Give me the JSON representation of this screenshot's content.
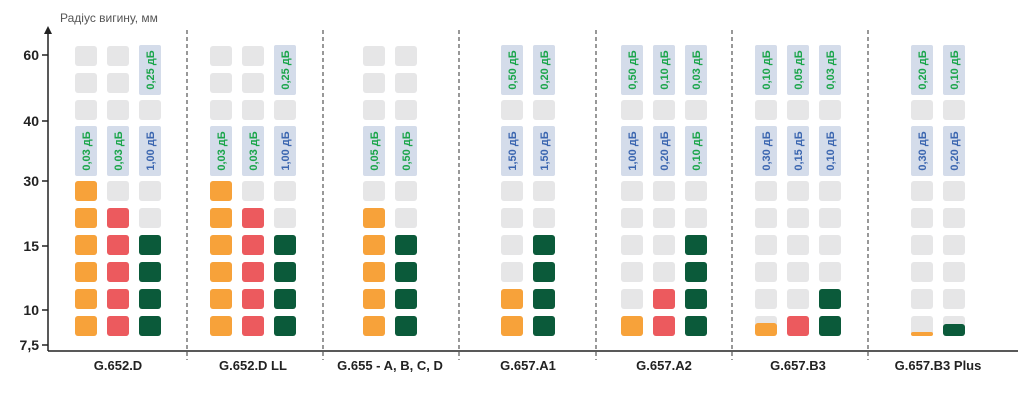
{
  "chart_data": {
    "type": "heatmap",
    "ylabel": "Радіус вигину, мм",
    "y_ticks": [
      "60",
      "40",
      "30",
      "15",
      "10",
      "7,5"
    ],
    "colors": {
      "orange": "#f7a23a",
      "red": "#ec5a5e",
      "green": "#0b5a3a",
      "cell_empty": "#e6e6e7",
      "label_bg": "#d4dcea",
      "loss_green": "#1aa54a",
      "loss_blue": "#3b66b0",
      "axis": "#222222",
      "separator": "#555555"
    },
    "groups": [
      {
        "category": "G.652.D",
        "columns": [
          {
            "color": "orange",
            "filled_levels": 6,
            "loss": {
              "text": "0,03 дБ",
              "color": "green"
            }
          },
          {
            "color": "red",
            "filled_levels": 5,
            "loss": {
              "text": "0,03 дБ",
              "color": "green"
            }
          },
          {
            "color": "green",
            "filled_levels": 4,
            "loss": {
              "text": "1,00 дБ",
              "color": "blue"
            },
            "loss_upper": {
              "text": "0,25 дБ",
              "color": "green"
            }
          }
        ]
      },
      {
        "category": "G.652.D LL",
        "columns": [
          {
            "color": "orange",
            "filled_levels": 6,
            "loss": {
              "text": "0,03 дБ",
              "color": "green"
            }
          },
          {
            "color": "red",
            "filled_levels": 5,
            "loss": {
              "text": "0,03 дБ",
              "color": "green"
            }
          },
          {
            "color": "green",
            "filled_levels": 4,
            "loss": {
              "text": "1,00 дБ",
              "color": "blue"
            },
            "loss_upper": {
              "text": "0,25 дБ",
              "color": "green"
            }
          }
        ]
      },
      {
        "category": "G.655 - A, B, C, D",
        "columns": [
          {
            "color": "orange",
            "filled_levels": 5,
            "loss": {
              "text": "0,05 дБ",
              "color": "green"
            }
          },
          {
            "color": "green",
            "filled_levels": 4,
            "loss": {
              "text": "0,50 дБ",
              "color": "green"
            }
          }
        ]
      },
      {
        "category": "G.657.A1",
        "columns": [
          {
            "color": "orange",
            "filled_levels": 2,
            "loss": {
              "text": "1,50 дБ",
              "color": "blue"
            },
            "loss_upper": {
              "text": "0,50 дБ",
              "color": "green"
            }
          },
          {
            "color": "green",
            "filled_levels": 4,
            "loss": {
              "text": "1,50 дБ",
              "color": "blue"
            },
            "loss_upper": {
              "text": "0,20 дБ",
              "color": "green"
            }
          }
        ]
      },
      {
        "category": "G.657.A2",
        "columns": [
          {
            "color": "orange",
            "filled_levels": 1,
            "loss": {
              "text": "1,00 дБ",
              "color": "blue"
            },
            "loss_upper": {
              "text": "0,50 дБ",
              "color": "green"
            }
          },
          {
            "color": "red",
            "filled_levels": 2,
            "loss": {
              "text": "0,20 дБ",
              "color": "blue"
            },
            "loss_upper": {
              "text": "0,10 дБ",
              "color": "green"
            }
          },
          {
            "color": "green",
            "filled_levels": 4,
            "loss": {
              "text": "0,10 дБ",
              "color": "green"
            },
            "loss_upper": {
              "text": "0,03 дБ",
              "color": "green"
            }
          }
        ]
      },
      {
        "category": "G.657.B3",
        "columns": [
          {
            "color": "orange",
            "filled_levels": 0.65,
            "loss": {
              "text": "0,30 дБ",
              "color": "blue"
            },
            "loss_upper": {
              "text": "0,10 дБ",
              "color": "green"
            }
          },
          {
            "color": "red",
            "filled_levels": 1,
            "loss": {
              "text": "0,15 дБ",
              "color": "blue"
            },
            "loss_upper": {
              "text": "0,05 дБ",
              "color": "green"
            }
          },
          {
            "color": "green",
            "filled_levels": 2,
            "loss": {
              "text": "0,10 дБ",
              "color": "blue"
            },
            "loss_upper": {
              "text": "0,03 дБ",
              "color": "green"
            }
          }
        ]
      },
      {
        "category": "G.657.B3 Plus",
        "columns": [
          {
            "color": "orange",
            "filled_levels": 0.2,
            "loss": {
              "text": "0,30 дБ",
              "color": "blue"
            },
            "loss_upper": {
              "text": "0,20 дБ",
              "color": "green"
            }
          },
          {
            "color": "green",
            "filled_levels": 0.6,
            "loss": {
              "text": "0,20 дБ",
              "color": "blue"
            },
            "loss_upper": {
              "text": "0,10 дБ",
              "color": "green"
            }
          }
        ]
      }
    ]
  }
}
